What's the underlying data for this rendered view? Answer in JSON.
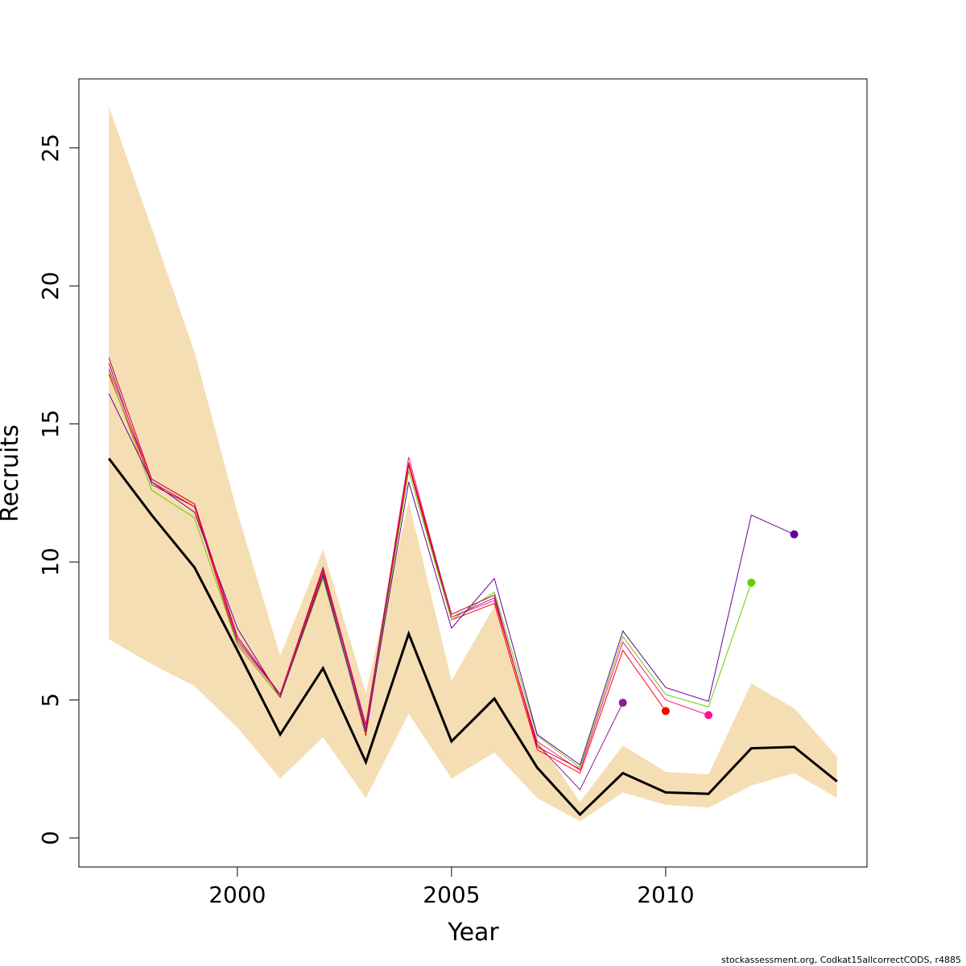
{
  "chart_data": {
    "type": "line",
    "xlabel": "Year",
    "ylabel": "Recruits",
    "xlim": [
      1996.3,
      2014.7
    ],
    "ylim": [
      -1.05,
      27.5
    ],
    "x_ticks": [
      2000,
      2005,
      2010
    ],
    "y_ticks": [
      0,
      5,
      10,
      15,
      20,
      25
    ],
    "grid": false,
    "legend": "none",
    "credit": "stockassessment.org, Codkat15allcorrectCODS, r4885",
    "confidence_band": {
      "color": "#f5deb3",
      "x": [
        1997,
        1998,
        1999,
        2000,
        2001,
        2002,
        2003,
        2004,
        2005,
        2006,
        2007,
        2008,
        2009,
        2010,
        2011,
        2012,
        2013,
        2014
      ],
      "upper": [
        26.5,
        22.1,
        17.6,
        11.8,
        6.6,
        10.45,
        5.25,
        12.2,
        5.7,
        8.4,
        3.6,
        1.3,
        3.35,
        2.4,
        2.3,
        5.6,
        4.7,
        2.95
      ],
      "lower": [
        7.2,
        6.3,
        5.5,
        4.0,
        2.15,
        3.65,
        1.45,
        4.5,
        2.15,
        3.1,
        1.45,
        0.6,
        1.65,
        1.2,
        1.1,
        1.9,
        2.35,
        1.45
      ]
    },
    "series": [
      {
        "color": "#000000",
        "width": 3,
        "x": [
          1997,
          1998,
          1999,
          2000,
          2001,
          2002,
          2003,
          2004,
          2005,
          2006,
          2007,
          2008,
          2009,
          2010,
          2011,
          2012,
          2013,
          2014
        ],
        "values": [
          13.75,
          11.7,
          9.8,
          6.8,
          3.75,
          6.15,
          2.75,
          7.4,
          3.5,
          5.05,
          2.55,
          0.85,
          2.35,
          1.65,
          1.6,
          3.25,
          3.3,
          2.05
        ]
      },
      {
        "color": "#8B1E8B",
        "width": 1,
        "end_marker": true,
        "x": [
          1997,
          1998,
          1999,
          2000,
          2001,
          2002,
          2003,
          2004,
          2005,
          2006,
          2007,
          2008,
          2009
        ],
        "values": [
          17.2,
          12.8,
          12.0,
          7.2,
          5.2,
          9.7,
          3.95,
          13.5,
          8.0,
          8.7,
          3.4,
          1.75,
          4.9
        ]
      },
      {
        "color": "#FF0000",
        "width": 1,
        "end_marker": true,
        "x": [
          1997,
          1998,
          1999,
          2000,
          2001,
          2002,
          2003,
          2004,
          2005,
          2006,
          2007,
          2008,
          2009,
          2010
        ],
        "values": [
          16.8,
          12.9,
          12.0,
          7.0,
          5.1,
          9.6,
          3.7,
          13.5,
          7.9,
          8.5,
          3.2,
          2.35,
          6.8,
          4.6
        ]
      },
      {
        "color": "#FF1493",
        "width": 1,
        "end_marker": true,
        "x": [
          1997,
          1998,
          1999,
          2000,
          2001,
          2002,
          2003,
          2004,
          2005,
          2006,
          2007,
          2008,
          2009,
          2010,
          2011
        ],
        "values": [
          17.0,
          13.0,
          12.1,
          7.1,
          5.2,
          9.8,
          4.0,
          13.8,
          8.0,
          8.6,
          3.5,
          2.45,
          7.1,
          5.0,
          4.45
        ]
      },
      {
        "color": "#66CC00",
        "width": 1,
        "end_marker": true,
        "x": [
          1997,
          1998,
          1999,
          2000,
          2001,
          2002,
          2003,
          2004,
          2005,
          2006,
          2007,
          2008,
          2009,
          2010,
          2011,
          2012
        ],
        "values": [
          16.9,
          12.6,
          11.6,
          7.0,
          5.1,
          9.4,
          3.8,
          13.3,
          7.9,
          8.9,
          3.7,
          2.55,
          7.3,
          5.2,
          4.75,
          9.25
        ]
      },
      {
        "color": "#660099",
        "width": 1,
        "end_marker": true,
        "x": [
          1997,
          1998,
          1999,
          2000,
          2001,
          2002,
          2003,
          2004,
          2005,
          2006,
          2007,
          2008,
          2009,
          2010,
          2011,
          2012,
          2013
        ],
        "values": [
          16.1,
          12.9,
          11.8,
          7.6,
          5.1,
          9.5,
          3.85,
          12.9,
          7.6,
          9.4,
          3.75,
          2.65,
          7.5,
          5.45,
          4.95,
          11.7,
          11.0
        ]
      },
      {
        "color": "#CC0033",
        "width": 1,
        "end_marker": false,
        "x": [
          1997,
          1998,
          1999,
          2000,
          2001,
          2002,
          2003,
          2004,
          2005,
          2006,
          2007,
          2008
        ],
        "values": [
          17.4,
          13.0,
          12.1,
          7.3,
          5.2,
          9.8,
          4.1,
          13.6,
          8.1,
          8.8,
          3.3,
          2.5
        ]
      }
    ]
  }
}
